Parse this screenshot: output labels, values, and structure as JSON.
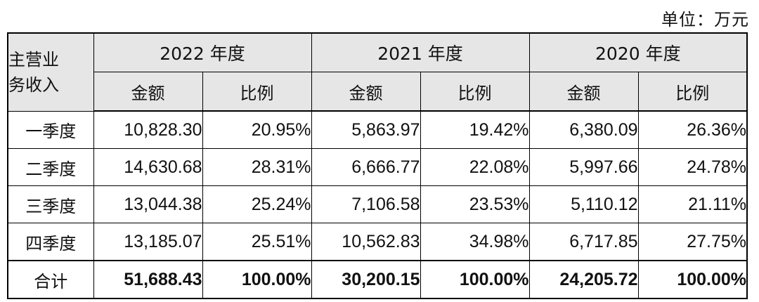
{
  "unit": "单位：万元",
  "table": {
    "corner_label_line1": "主营业",
    "corner_label_line2": "务收入",
    "years": [
      "2022 年度",
      "2021 年度",
      "2020 年度"
    ],
    "sub_headers": [
      "金额",
      "比例"
    ],
    "rows": [
      {
        "label": "一季度",
        "values": [
          "10,828.30",
          "20.95%",
          "5,863.97",
          "19.42%",
          "6,380.09",
          "26.36%"
        ]
      },
      {
        "label": "二季度",
        "values": [
          "14,630.68",
          "28.31%",
          "6,666.77",
          "22.08%",
          "5,997.66",
          "24.78%"
        ]
      },
      {
        "label": "三季度",
        "values": [
          "13,044.38",
          "25.24%",
          "7,106.58",
          "23.53%",
          "5,110.12",
          "21.11%"
        ]
      },
      {
        "label": "四季度",
        "values": [
          "13,185.07",
          "25.51%",
          "10,562.83",
          "34.98%",
          "6,717.85",
          "27.75%"
        ]
      }
    ],
    "total": {
      "label": "合计",
      "values": [
        "51,688.43",
        "100.00%",
        "30,200.15",
        "100.00%",
        "24,205.72",
        "100.00%"
      ]
    }
  }
}
